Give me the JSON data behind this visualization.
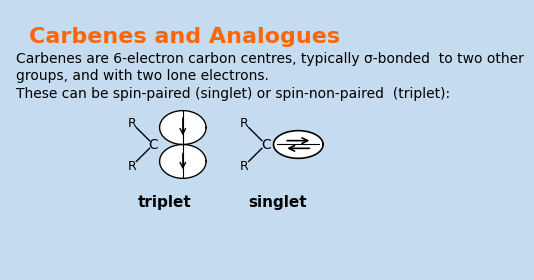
{
  "title": "Carbenes and Analogues",
  "title_color": "#FF6600",
  "title_fontsize": 16,
  "background_color": "#C5DCF0",
  "text1": "Carbenes are 6-electron carbon centres, typically σ-bonded  to two other\ngroups, and with two lone electrons.",
  "text2": "These can be spin-paired (singlet) or spin-non-paired  (triplet):",
  "label_triplet": "triplet",
  "label_singlet": "singlet",
  "text_fontsize": 10,
  "label_fontsize": 11
}
